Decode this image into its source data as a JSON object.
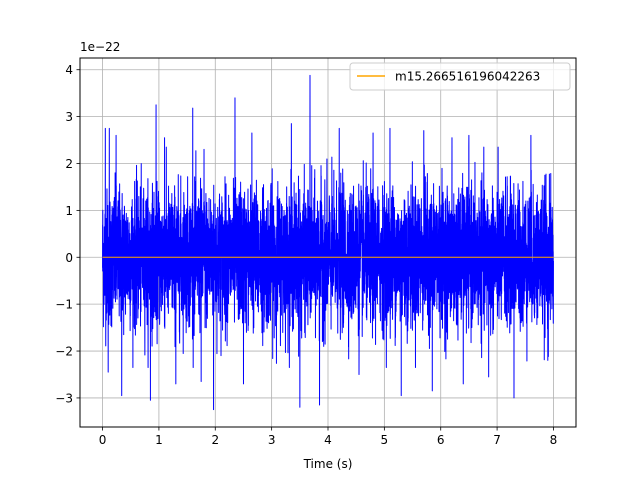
{
  "chart_data": {
    "type": "line",
    "title": "",
    "xlabel": "Time (s)",
    "ylabel": "",
    "y_offset_label": "1e−22",
    "y_unit_scale": 1e-22,
    "xlim": [
      -0.4,
      8.4
    ],
    "ylim": [
      -3.62,
      4.25
    ],
    "x_ticks": [
      0,
      1,
      2,
      3,
      4,
      5,
      6,
      7,
      8
    ],
    "x_tick_labels": [
      "0",
      "1",
      "2",
      "3",
      "4",
      "5",
      "6",
      "7",
      "8"
    ],
    "y_ticks": [
      -3,
      -2,
      -1,
      0,
      1,
      2,
      3,
      4
    ],
    "y_tick_labels": [
      "−3",
      "−2",
      "−1",
      "0",
      "1",
      "2",
      "3",
      "4"
    ],
    "grid": true,
    "legend_position": "upper-right",
    "series": [
      {
        "name": "",
        "color": "#0000ff",
        "x_range": [
          0,
          8
        ],
        "description_values": "noise-like strain signal, typical band -2 to 2 (x1e-22)",
        "envelope_max_approx": 3.88,
        "envelope_min_approx": -3.3
      },
      {
        "name": "m15.266516196042263",
        "color": "#ffa500",
        "x_range": [
          0,
          8
        ],
        "values_approx_zero": true
      }
    ],
    "peaks": [
      {
        "x": 0.05,
        "y": 2.75
      },
      {
        "x": 0.12,
        "y": 2.75
      },
      {
        "x": 0.24,
        "y": 2.6
      },
      {
        "x": 0.95,
        "y": 3.25
      },
      {
        "x": 1.1,
        "y": 2.55
      },
      {
        "x": 1.6,
        "y": 3.18
      },
      {
        "x": 1.8,
        "y": 2.3
      },
      {
        "x": 2.35,
        "y": 3.4
      },
      {
        "x": 2.65,
        "y": 2.65
      },
      {
        "x": 3.35,
        "y": 2.85
      },
      {
        "x": 3.68,
        "y": 3.88
      },
      {
        "x": 4.2,
        "y": 2.75
      },
      {
        "x": 4.8,
        "y": 2.65
      },
      {
        "x": 5.1,
        "y": 2.75
      },
      {
        "x": 5.7,
        "y": 2.7
      },
      {
        "x": 6.2,
        "y": 2.55
      },
      {
        "x": 6.5,
        "y": 2.6
      },
      {
        "x": 6.85,
        "y": 2.75
      },
      {
        "x": 7.6,
        "y": 2.6
      },
      {
        "x": 7.9,
        "y": 2.4
      }
    ],
    "troughs": [
      {
        "x": 0.1,
        "y": -2.45
      },
      {
        "x": 0.34,
        "y": -2.95
      },
      {
        "x": 0.85,
        "y": -3.05
      },
      {
        "x": 1.3,
        "y": -2.7
      },
      {
        "x": 1.75,
        "y": -2.65
      },
      {
        "x": 1.97,
        "y": -3.25
      },
      {
        "x": 2.5,
        "y": -2.7
      },
      {
        "x": 3.5,
        "y": -3.2
      },
      {
        "x": 3.85,
        "y": -3.15
      },
      {
        "x": 4.55,
        "y": -2.5
      },
      {
        "x": 5.3,
        "y": -2.95
      },
      {
        "x": 5.85,
        "y": -2.85
      },
      {
        "x": 6.4,
        "y": -2.7
      },
      {
        "x": 6.85,
        "y": -2.55
      },
      {
        "x": 7.3,
        "y": -3.0
      },
      {
        "x": 7.9,
        "y": -2.2
      }
    ]
  }
}
